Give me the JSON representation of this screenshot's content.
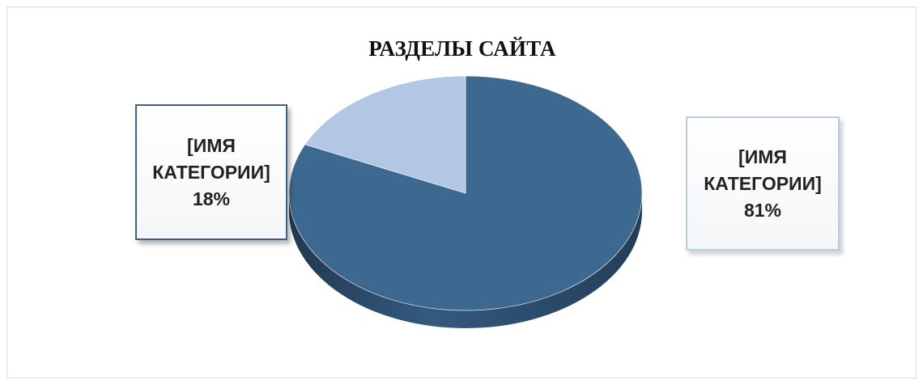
{
  "chart_data": {
    "type": "pie",
    "title": "РАЗДЕЛЫ САЙТА",
    "slices": [
      {
        "label": "[ИМЯ КАТЕГОРИИ]",
        "percent_label": "81%",
        "value": 81,
        "color": "#3d6890"
      },
      {
        "label": "[ИМЯ КАТЕГОРИИ]",
        "percent_label": "18%",
        "value": 18,
        "color": "#b2c7e4"
      }
    ],
    "style": "3d",
    "legend": "none"
  }
}
